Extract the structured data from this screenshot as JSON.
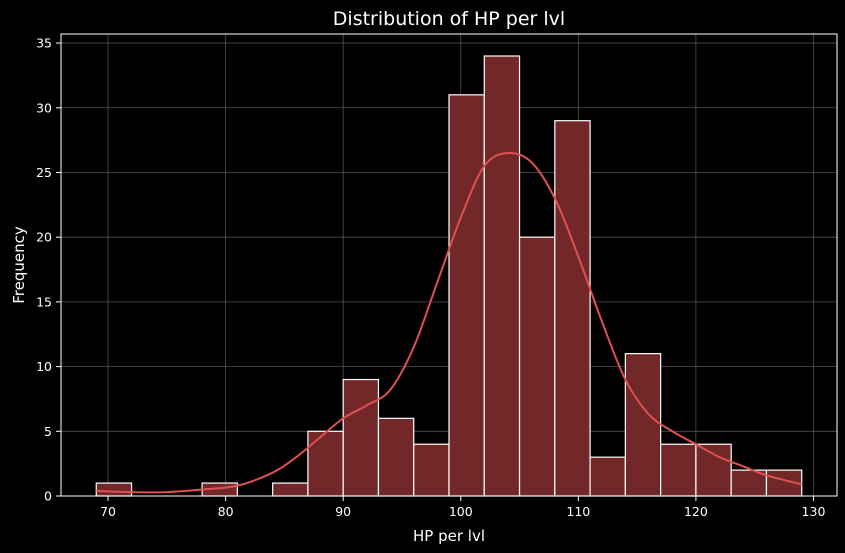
{
  "chart_data": {
    "type": "bar",
    "subtype": "histogram",
    "title": "Distribution of HP per lvl",
    "xlabel": "HP per lvl",
    "ylabel": "Frequency",
    "xlim": [
      66.0,
      132.0
    ],
    "ylim": [
      0,
      35.7
    ],
    "xticks": [
      70,
      80,
      90,
      100,
      110,
      120,
      130
    ],
    "yticks": [
      0,
      5,
      10,
      15,
      20,
      25,
      30,
      35
    ],
    "grid": true,
    "bin_edges": [
      69.0,
      72.0,
      75.0,
      78.0,
      81.0,
      84.0,
      87.0,
      90.0,
      93.0,
      96.0,
      99.0,
      102.0,
      105.0,
      108.0,
      111.0,
      114.0,
      117.0,
      120.0,
      123.0,
      126.0,
      129.0
    ],
    "values": [
      1,
      0,
      0,
      1,
      0,
      1,
      5,
      9,
      6,
      4,
      31,
      34,
      20,
      29,
      3,
      11,
      4,
      4,
      2,
      2
    ],
    "kde": {
      "x": [
        69,
        72,
        75,
        78,
        81,
        84,
        86,
        88,
        90,
        92,
        94,
        96,
        98,
        100,
        102,
        104,
        106,
        108,
        110,
        112,
        114,
        116,
        118,
        120,
        122,
        124,
        126,
        129
      ],
      "y": [
        0.4,
        0.3,
        0.3,
        0.5,
        0.8,
        1.8,
        3.0,
        4.5,
        6.0,
        7.0,
        8.2,
        11.5,
        16.5,
        21.5,
        25.5,
        26.5,
        25.8,
        23.0,
        18.5,
        13.5,
        9.0,
        6.3,
        5.0,
        4.0,
        3.0,
        2.3,
        1.6,
        0.9
      ]
    },
    "colors": {
      "bar_fill": "#722828",
      "bar_edge": "#ffffff",
      "kde_line": "#e05050",
      "grid": "#5a5a5a",
      "axes": "#ffffff",
      "background": "#000000"
    }
  }
}
